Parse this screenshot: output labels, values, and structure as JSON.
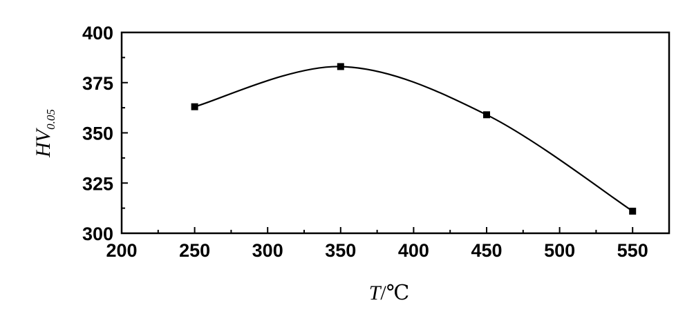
{
  "chart_data": {
    "type": "line",
    "title": "",
    "xlabel": {
      "var": "T",
      "sep": "/",
      "unit": "℃"
    },
    "ylabel": {
      "var": "HV",
      "sub": "0.05"
    },
    "xlim": [
      200,
      575
    ],
    "ylim": [
      300,
      400
    ],
    "xticks": [
      200,
      250,
      300,
      350,
      400,
      450,
      500,
      550
    ],
    "yticks": [
      300,
      325,
      350,
      375,
      400
    ],
    "grid": false,
    "legend": "none",
    "series": [
      {
        "x": [
          250,
          350,
          450,
          550
        ],
        "y": [
          363,
          383,
          359,
          311
        ],
        "marker": "square",
        "line": "smooth",
        "color": "#000000"
      }
    ]
  }
}
